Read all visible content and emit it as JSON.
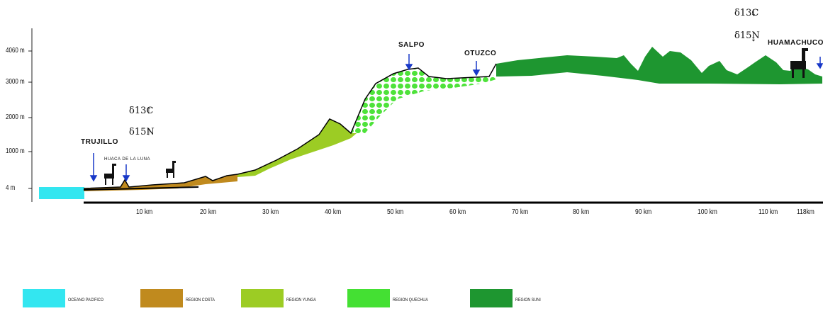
{
  "y_axis": {
    "ticks": [
      "4060 m",
      "3000 m",
      "2000 m",
      "1000 m",
      "4 m"
    ]
  },
  "x_axis": {
    "ticks": [
      "10 km",
      "20 km",
      "30 km",
      "40 km",
      "50 km",
      "60 km",
      "70 km",
      "80 km",
      "90 km",
      "100 km",
      "110 km",
      "118km"
    ]
  },
  "places": {
    "trujillo": "TRUJILLO",
    "huaca": "HUACA DE LA LUNA",
    "salpo": "SALPO",
    "otuzco": "OTUZCO",
    "huamachuco": "HUAMACHUCO"
  },
  "isotopes": {
    "coast_c": "δ13C",
    "coast_n": "δ15N",
    "highland_c": "δ13C",
    "highland_n": "δ15N",
    "up_arrow": "↑",
    "down_arrow": "↓"
  },
  "legend": [
    {
      "label": "OCÉANO PACÍFICO",
      "color": "#33e6f0"
    },
    {
      "label": "REGIÓN COSTA",
      "color": "#c08a1e"
    },
    {
      "label": "REGIÓN YUNGA",
      "color": "#9ccc24"
    },
    {
      "label": "REGIÓN QUECHUA",
      "color": "#44e033"
    },
    {
      "label": "REGIÓN SUNI",
      "color": "#1e9630"
    }
  ]
}
